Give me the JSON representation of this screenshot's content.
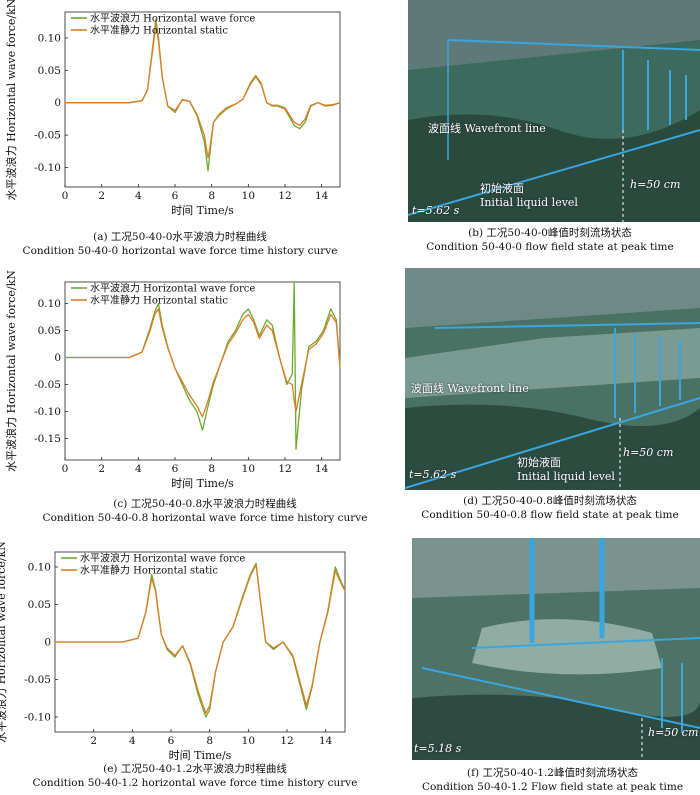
{
  "colors": {
    "green": "#6aaa2f",
    "orange": "#e07b24"
  },
  "chart_data": [
    {
      "id": "a",
      "type": "line",
      "title": "",
      "xlabel": "时间 Time/s",
      "ylabel": "水平波浪力 Horizontal wave force/kN",
      "xlim": [
        0,
        15
      ],
      "ylim": [
        -0.13,
        0.14
      ],
      "xticks": [
        0,
        2,
        4,
        6,
        8,
        10,
        12,
        14
      ],
      "yticks": [
        -0.1,
        -0.05,
        0,
        0.05,
        0.1
      ],
      "ytick_labels": [
        "-0.10",
        "-0.05",
        "0",
        "0.05",
        "0.10"
      ],
      "legend": [
        "水平波浪力 Horizontal wave force",
        "水平准静力 Horizontal static"
      ],
      "series": [
        {
          "name": "水平波浪力 Horizontal wave force",
          "color": "#6aaa2f",
          "x": [
            0,
            3.5,
            4.2,
            4.5,
            4.8,
            4.95,
            5.1,
            5.3,
            5.6,
            6,
            6.4,
            6.8,
            7.2,
            7.6,
            7.8,
            7.9,
            8.1,
            8.4,
            8.8,
            9.3,
            9.7,
            10.1,
            10.4,
            10.7,
            11.0,
            11.3,
            11.6,
            12.0,
            12.5,
            12.8,
            13.1,
            13.4,
            13.8,
            14.2,
            14.6,
            15
          ],
          "y": [
            0,
            0,
            0.003,
            0.02,
            0.09,
            0.128,
            0.1,
            0.04,
            -0.005,
            -0.015,
            0.005,
            0.002,
            -0.02,
            -0.06,
            -0.105,
            -0.08,
            -0.03,
            -0.02,
            -0.01,
            -0.002,
            0.005,
            0.03,
            0.042,
            0.03,
            0,
            -0.005,
            -0.005,
            -0.01,
            -0.035,
            -0.04,
            -0.03,
            -0.005,
            0,
            -0.005,
            -0.004,
            0
          ]
        },
        {
          "name": "水平准静力 Horizontal static",
          "color": "#e07b24",
          "x": [
            0,
            3.5,
            4.2,
            4.5,
            4.8,
            4.95,
            5.1,
            5.3,
            5.6,
            6,
            6.4,
            6.8,
            7.2,
            7.6,
            7.8,
            7.9,
            8.1,
            8.4,
            8.8,
            9.3,
            9.7,
            10.1,
            10.4,
            10.7,
            11.0,
            11.3,
            11.6,
            12.0,
            12.5,
            12.8,
            13.1,
            13.4,
            13.8,
            14.2,
            14.6,
            15
          ],
          "y": [
            0,
            0,
            0.003,
            0.02,
            0.085,
            0.12,
            0.095,
            0.04,
            -0.005,
            -0.012,
            0.004,
            0.002,
            -0.018,
            -0.05,
            -0.085,
            -0.07,
            -0.03,
            -0.018,
            -0.008,
            -0.002,
            0.005,
            0.028,
            0.04,
            0.028,
            0,
            -0.004,
            -0.004,
            -0.008,
            -0.03,
            -0.035,
            -0.025,
            -0.004,
            0,
            -0.004,
            -0.003,
            0
          ]
        }
      ]
    },
    {
      "id": "c",
      "type": "line",
      "title": "",
      "xlabel": "时间 Time/s",
      "ylabel": "水平波浪力 Horizontal wave force/kN",
      "xlim": [
        0,
        15
      ],
      "ylim": [
        -0.19,
        0.14
      ],
      "xticks": [
        0,
        2,
        4,
        6,
        8,
        10,
        12,
        14
      ],
      "yticks": [
        -0.15,
        -0.1,
        -0.05,
        0,
        0.05,
        0.1
      ],
      "ytick_labels": [
        "-0.15",
        "-0.10",
        "-0.05",
        "0",
        "0.05",
        "0.10"
      ],
      "legend": [
        "水平波浪力 Horizontal wave force",
        "水平准静力 Horizontal static"
      ],
      "series": [
        {
          "name": "水平波浪力 Horizontal wave force",
          "color": "#6aaa2f",
          "x": [
            0,
            3.5,
            4.2,
            4.6,
            4.9,
            5.1,
            5.3,
            5.6,
            6.0,
            6.4,
            6.8,
            7.2,
            7.5,
            7.8,
            8.1,
            8.5,
            8.9,
            9.3,
            9.7,
            10.0,
            10.3,
            10.6,
            11.0,
            11.3,
            11.7,
            12.1,
            12.4,
            12.5,
            12.6,
            12.9,
            13.3,
            13.7,
            14.1,
            14.5,
            14.8,
            15
          ],
          "y": [
            0,
            0,
            0.01,
            0.05,
            0.085,
            0.1,
            0.06,
            0.02,
            -0.02,
            -0.05,
            -0.08,
            -0.1,
            -0.135,
            -0.09,
            -0.05,
            -0.01,
            0.03,
            0.05,
            0.08,
            0.09,
            0.07,
            0.04,
            0.07,
            0.06,
            0.0,
            -0.05,
            -0.03,
            0.14,
            -0.17,
            -0.06,
            0.02,
            0.03,
            0.05,
            0.09,
            0.07,
            -0.02
          ]
        },
        {
          "name": "水平准静力 Horizontal static",
          "color": "#e07b24",
          "x": [
            0,
            3.5,
            4.2,
            4.6,
            4.9,
            5.1,
            5.3,
            5.6,
            6.0,
            6.4,
            6.8,
            7.2,
            7.5,
            7.8,
            8.1,
            8.5,
            8.9,
            9.3,
            9.7,
            10.0,
            10.3,
            10.6,
            11.0,
            11.3,
            11.7,
            12.1,
            12.4,
            12.5,
            12.6,
            12.9,
            13.3,
            13.7,
            14.1,
            14.5,
            14.8,
            15
          ],
          "y": [
            0,
            0,
            0.01,
            0.045,
            0.08,
            0.09,
            0.055,
            0.018,
            -0.02,
            -0.045,
            -0.07,
            -0.09,
            -0.11,
            -0.08,
            -0.045,
            -0.01,
            0.025,
            0.045,
            0.07,
            0.08,
            0.065,
            0.035,
            0.06,
            0.05,
            0.0,
            -0.045,
            -0.05,
            -0.08,
            -0.1,
            -0.05,
            0.015,
            0.025,
            0.045,
            0.08,
            0.065,
            -0.015
          ]
        }
      ]
    },
    {
      "id": "e",
      "type": "line",
      "title": "",
      "xlabel": "时间 Time/s",
      "ylabel": "水平波浪力 Horizontal wave force/kN",
      "xlim": [
        0,
        15
      ],
      "ylim": [
        -0.12,
        0.12
      ],
      "xticks": [
        2,
        4,
        6,
        8,
        10,
        12,
        14
      ],
      "yticks": [
        -0.1,
        -0.05,
        0,
        0.05,
        0.1
      ],
      "ytick_labels": [
        "-0.10",
        "-0.05",
        "0",
        "0.05",
        "0.10"
      ],
      "legend": [
        "水平波浪力 Horizontal wave force",
        "水平准静力 Horizontal static"
      ],
      "series": [
        {
          "name": "水平波浪力 Horizontal wave force",
          "color": "#6aaa2f",
          "x": [
            0,
            3.5,
            4.3,
            4.7,
            5.0,
            5.2,
            5.5,
            5.8,
            6.2,
            6.6,
            7.0,
            7.4,
            7.8,
            8.0,
            8.3,
            8.7,
            9.2,
            9.7,
            10.1,
            10.4,
            10.6,
            10.9,
            11.3,
            11.8,
            12.3,
            12.8,
            13.0,
            13.3,
            13.7,
            14.1,
            14.5,
            14.8,
            15
          ],
          "y": [
            0,
            0,
            0.005,
            0.04,
            0.09,
            0.07,
            0.01,
            -0.01,
            -0.02,
            -0.005,
            -0.03,
            -0.07,
            -0.1,
            -0.09,
            -0.04,
            0.0,
            0.02,
            0.06,
            0.09,
            0.105,
            0.06,
            0.0,
            -0.01,
            0.0,
            -0.02,
            -0.07,
            -0.09,
            -0.06,
            0.0,
            0.04,
            0.1,
            0.08,
            0.07
          ]
        },
        {
          "name": "水平准静力 Horizontal static",
          "color": "#e07b24",
          "x": [
            0,
            3.5,
            4.3,
            4.7,
            5.0,
            5.2,
            5.5,
            5.8,
            6.2,
            6.6,
            7.0,
            7.4,
            7.8,
            8.0,
            8.3,
            8.7,
            9.2,
            9.7,
            10.1,
            10.4,
            10.6,
            10.9,
            11.3,
            11.8,
            12.3,
            12.8,
            13.0,
            13.3,
            13.7,
            14.1,
            14.5,
            14.8,
            15
          ],
          "y": [
            0,
            0,
            0.005,
            0.04,
            0.085,
            0.068,
            0.01,
            -0.008,
            -0.018,
            -0.005,
            -0.028,
            -0.065,
            -0.095,
            -0.085,
            -0.04,
            0.0,
            0.02,
            0.058,
            0.088,
            0.103,
            0.06,
            0.0,
            -0.008,
            0.0,
            -0.018,
            -0.065,
            -0.085,
            -0.058,
            0.0,
            0.038,
            0.095,
            0.078,
            0.068
          ]
        }
      ]
    }
  ],
  "captions": {
    "a_zh": "(a) 工况50-40-0水平波浪力时程曲线",
    "a_en": "Condition 50-40-0 horizontal wave force time history curve",
    "b_zh": "(b) 工况50-40-0峰值时刻流场状态",
    "b_en": "Condition 50-40-0 flow field state at peak time",
    "c_zh": "(c) 工况50-40-0.8水平波浪力时程曲线",
    "c_en": "Condition 50-40-0.8 horizontal wave force time history curve",
    "d_zh": "(d) 工况50-40-0.8峰值时刻流场状态",
    "d_en": "Condition 50-40-0.8 flow field state at peak time",
    "e_zh": "(e) 工况50-40-1.2水平波浪力时程曲线",
    "e_en": "Condition 50-40-1.2 horizontal wave force time history curve",
    "f_zh": "(f) 工况50-40-1.2峰值时刻流场状态",
    "f_en": "Condition 50-40-1.2 Flow field state at peak time"
  },
  "photos": {
    "b": {
      "wavefront": "波面线 Wavefront line",
      "initial_zh": "初始液面",
      "initial_en": "Initial liquid level",
      "time": "t=5.62 s",
      "depth": "h=50 cm"
    },
    "d": {
      "wavefront": "波面线 Wavefront line",
      "initial_zh": "初始液面",
      "initial_en": "Initial liquid level",
      "time": "t=5.62 s",
      "depth": "h=50 cm"
    },
    "f": {
      "time": "t=5.18 s",
      "depth": "h=50 cm"
    }
  }
}
